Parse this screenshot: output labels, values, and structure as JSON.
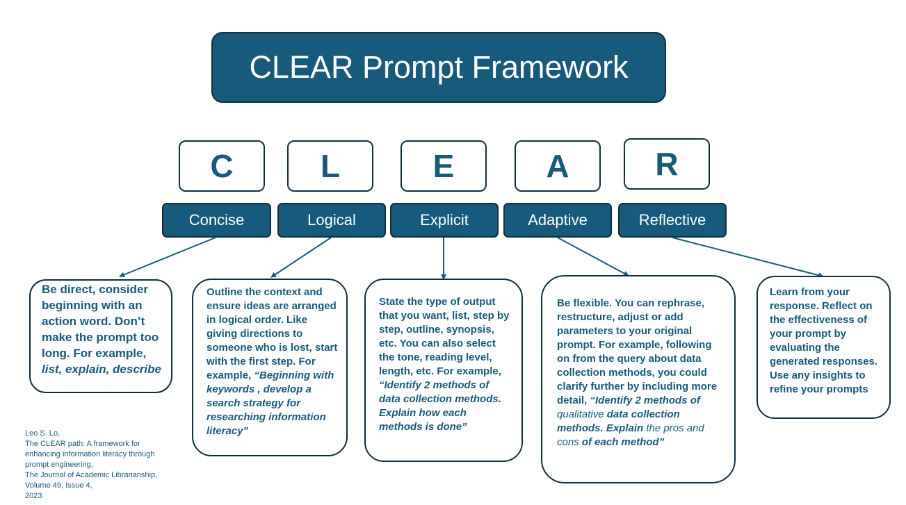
{
  "title": "CLEAR Prompt Framework",
  "letters": [
    "C",
    "L",
    "E",
    "A",
    "R"
  ],
  "words": [
    "Concise",
    "Logical",
    "Explicit",
    "Adaptive",
    "Reflective"
  ],
  "descriptions": {
    "concise": {
      "main": "Be direct, consider beginning with an action word. Don’t make the prompt too long.  For example, ",
      "italic": "list, explain, describe"
    },
    "logical": {
      "main": "Outline the context and ensure ideas are arranged in logical order. Like giving directions to someone who is lost, start with the first step.  For example, ",
      "italic": "“Beginning with keywords , develop a search strategy for researching information literacy”"
    },
    "explicit": {
      "main": "State the type of output that you want, list, step by step, outline, synopsis, etc.  You can also select  the tone, reading level, length, etc. For example, ",
      "italic": "“Identify 2 methods of data collection methods.  Explain how each methods is done”"
    },
    "adaptive": {
      "main": "Be flexible. You can rephrase, restructure, adjust or add parameters to your original prompt.  For example, following on from the query about data collection methods, you could clarify further by including more detail, ",
      "italic1": "“Identify 2 methods of ",
      "plain1": "qualitative",
      "italic2": " data collection methods.  Explain ",
      "plain2": "the pros and cons ",
      "italic3": "of each method”"
    },
    "reflective": {
      "main": "Learn from your response.  Reflect on the effectiveness of your prompt by evaluating the generated responses.  Use any insights to refine your prompts"
    }
  },
  "citation": [
    "Leo S. Lo,",
    "The CLEAR path: A framework for",
    "enhancing information literacy through",
    "prompt engineering,",
    "The Journal of Academic Librarianship,",
    "Volume 49, Issue 4,",
    "2023"
  ],
  "colors": {
    "primary": "#175a7b",
    "border": "#0e2f40"
  }
}
